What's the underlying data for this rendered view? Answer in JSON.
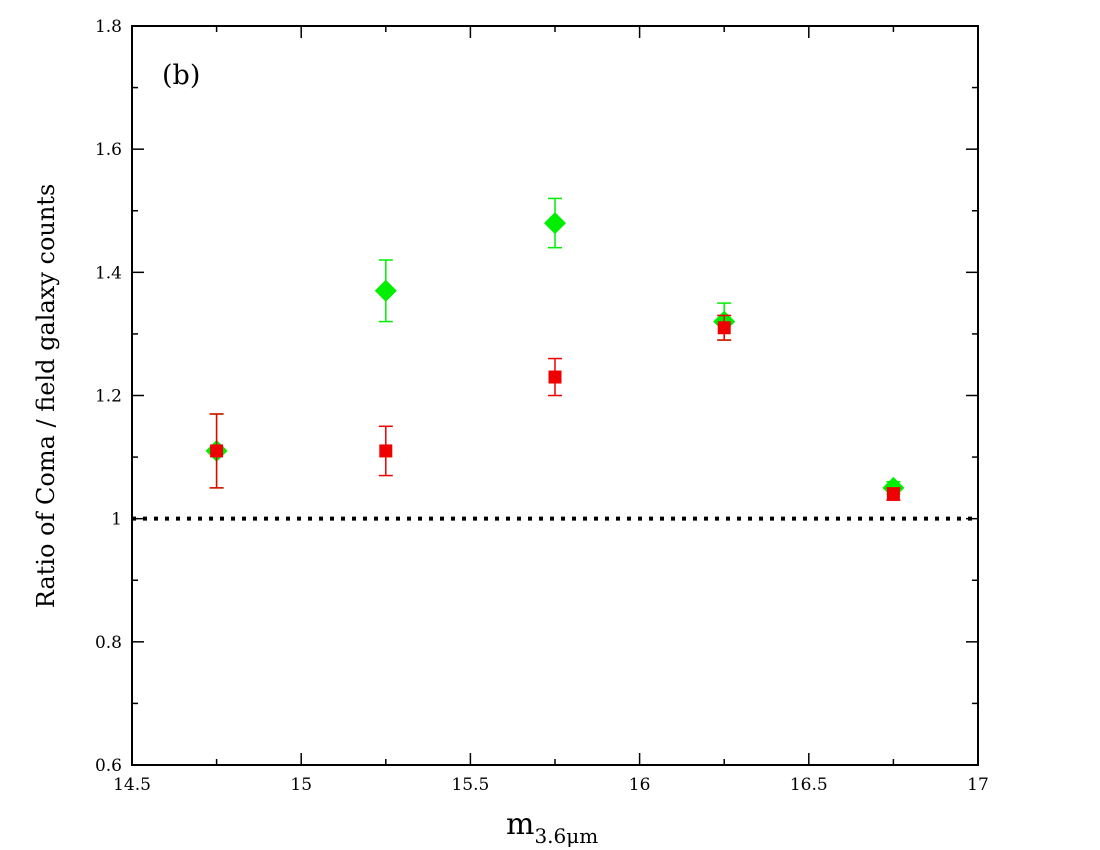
{
  "chart_data": {
    "type": "scatter",
    "panel_label": "(b)",
    "xlabel": "m",
    "xlabel_subscript": "3.6μm",
    "ylabel": "Ratio of Coma / field galaxy counts",
    "xlim": [
      14.5,
      17
    ],
    "ylim": [
      0.6,
      1.8
    ],
    "x_ticks": [
      14.5,
      15,
      15.5,
      16,
      16.5,
      17
    ],
    "x_tick_labels": [
      "14.5",
      "15",
      "15.5",
      "16",
      "16.5",
      "17"
    ],
    "y_ticks": [
      0.6,
      0.8,
      1.0,
      1.2,
      1.4,
      1.6,
      1.8
    ],
    "y_tick_labels": [
      "0.6",
      "0.8",
      "1",
      "1.2",
      "1.4",
      "1.6",
      "1.8"
    ],
    "reference_line": {
      "y": 1.0,
      "style": "dotted",
      "color": "#000000"
    },
    "series": [
      {
        "name": "green-diamonds",
        "marker": "diamond",
        "color": "#00ee00",
        "points": [
          {
            "x": 14.75,
            "y": 1.11,
            "err": 0.06
          },
          {
            "x": 15.25,
            "y": 1.37,
            "err": 0.05
          },
          {
            "x": 15.75,
            "y": 1.48,
            "err": 0.04
          },
          {
            "x": 16.25,
            "y": 1.32,
            "err": 0.03
          },
          {
            "x": 16.75,
            "y": 1.05,
            "err": 0.01
          }
        ]
      },
      {
        "name": "red-squares",
        "marker": "square",
        "color": "#ee0000",
        "points": [
          {
            "x": 14.75,
            "y": 1.11,
            "err": 0.06
          },
          {
            "x": 15.25,
            "y": 1.11,
            "err": 0.04
          },
          {
            "x": 15.75,
            "y": 1.23,
            "err": 0.03
          },
          {
            "x": 16.25,
            "y": 1.31,
            "err": 0.02
          },
          {
            "x": 16.75,
            "y": 1.04,
            "err": 0.01
          }
        ]
      }
    ]
  }
}
